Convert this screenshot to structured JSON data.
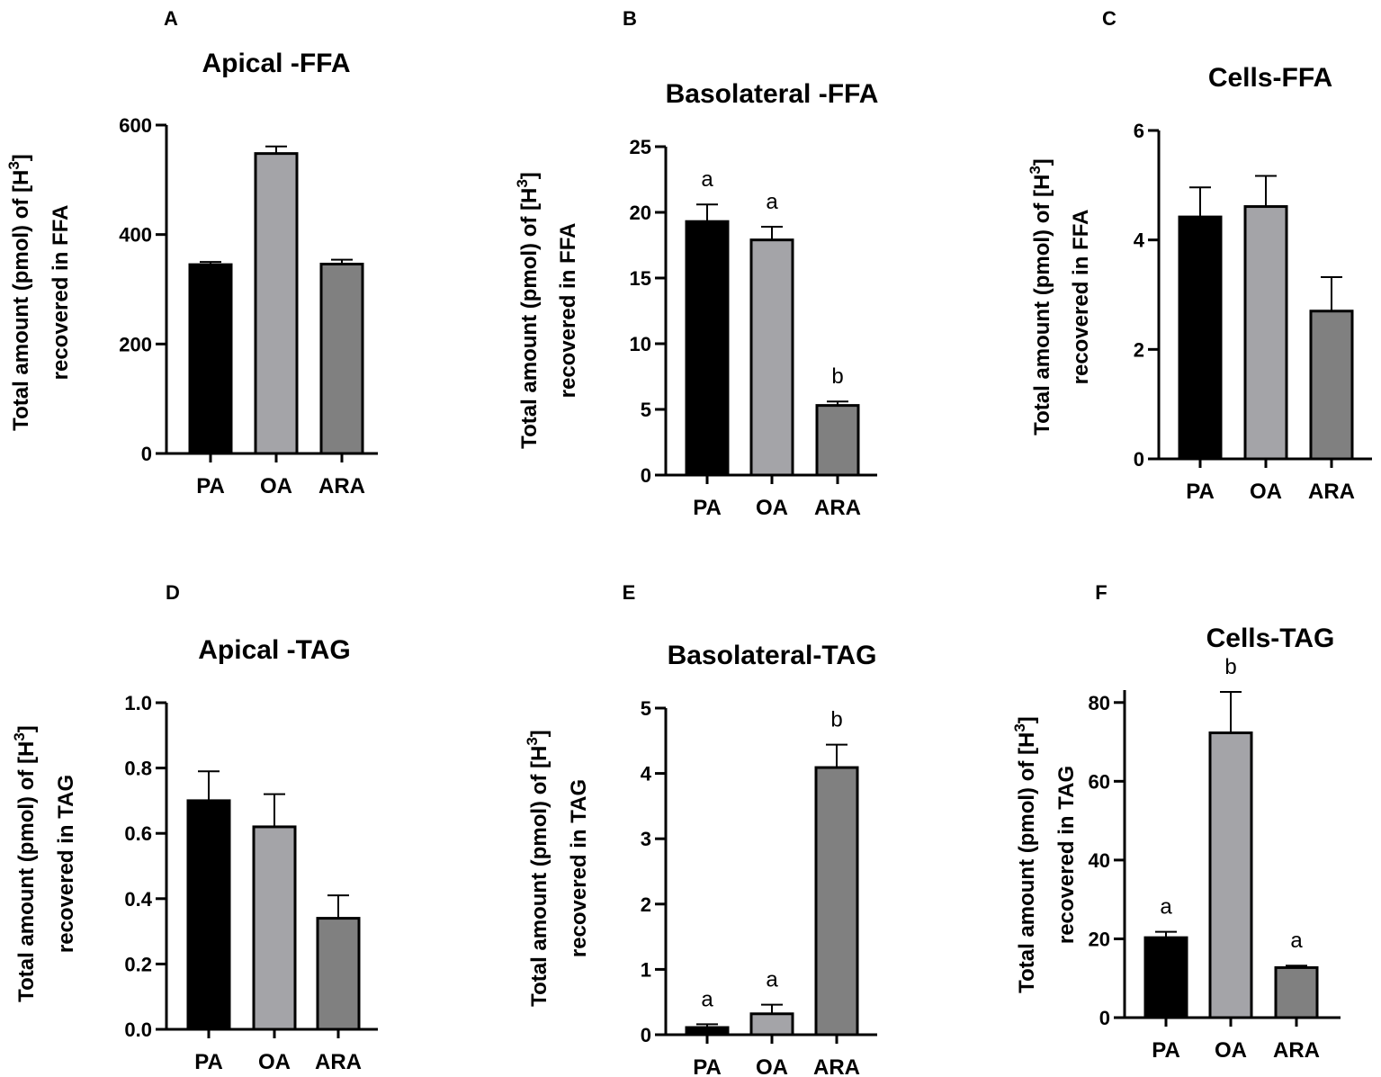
{
  "colors": {
    "PA": "#000000",
    "OA": "#a4a4a8",
    "ARA": "#808080",
    "edge": "#000000"
  },
  "chart_data": [
    {
      "panel": "A",
      "type": "bar",
      "title": "Apical -FFA",
      "ylabel_prefix": "Total amount (pmol) of [H",
      "ylabel_sup": "3",
      "ylabel_suffix": "]",
      "ylabel_line2": "recovered in FFA",
      "categories": [
        "PA",
        "OA",
        "ARA"
      ],
      "values": [
        345,
        548,
        346
      ],
      "errors": [
        5,
        13,
        8
      ],
      "significance": [
        "",
        "",
        ""
      ],
      "ylim": [
        0,
        600
      ],
      "yticks": [
        0,
        200,
        400,
        600
      ],
      "ytick_labels": [
        "0",
        "200",
        "400",
        "600"
      ]
    },
    {
      "panel": "B",
      "type": "bar",
      "title": "Basolateral -FFA",
      "ylabel_prefix": "Total amount (pmol) of [H",
      "ylabel_sup": "3",
      "ylabel_suffix": "]",
      "ylabel_line2": "recovered in FFA",
      "categories": [
        "PA",
        "OA",
        "ARA"
      ],
      "values": [
        19.3,
        17.9,
        5.3
      ],
      "errors": [
        1.3,
        1.0,
        0.3
      ],
      "significance": [
        "a",
        "a",
        "b"
      ],
      "ylim": [
        0,
        25
      ],
      "yticks": [
        0,
        5,
        10,
        15,
        20,
        25
      ],
      "ytick_labels": [
        "0",
        "5",
        "10",
        "15",
        "20",
        "25"
      ]
    },
    {
      "panel": "C",
      "type": "bar",
      "title": "Cells-FFA",
      "ylabel_prefix": "Total amount (pmol) of [H",
      "ylabel_sup": "3",
      "ylabel_suffix": "]",
      "ylabel_line2": "recovered in FFA",
      "categories": [
        "PA",
        "OA",
        "ARA"
      ],
      "values": [
        4.42,
        4.61,
        2.7
      ],
      "errors": [
        0.54,
        0.56,
        0.62
      ],
      "significance": [
        "",
        "",
        ""
      ],
      "ylim": [
        0,
        6
      ],
      "yticks": [
        0,
        2,
        4,
        6
      ],
      "ytick_labels": [
        "0",
        "2",
        "4",
        "6"
      ]
    },
    {
      "panel": "D",
      "type": "bar",
      "title": "Apical -TAG",
      "ylabel_prefix": "Total amount (pmol) of [H",
      "ylabel_sup": "3",
      "ylabel_suffix": "]",
      "ylabel_line2": "recovered in TAG",
      "categories": [
        "PA",
        "OA",
        "ARA"
      ],
      "values": [
        0.7,
        0.62,
        0.34
      ],
      "errors": [
        0.09,
        0.1,
        0.07
      ],
      "significance": [
        "",
        "",
        ""
      ],
      "ylim": [
        0,
        1.0
      ],
      "yticks": [
        0,
        0.2,
        0.4,
        0.6,
        0.8,
        1.0
      ],
      "ytick_labels": [
        "0.0",
        "0.2",
        "0.4",
        "0.6",
        "0.8",
        "1.0"
      ]
    },
    {
      "panel": "E",
      "type": "bar",
      "title": "Basolateral-TAG",
      "ylabel_prefix": "Total amount (pmol) of [H",
      "ylabel_sup": "3",
      "ylabel_suffix": "]",
      "ylabel_line2": "recovered in TAG",
      "categories": [
        "PA",
        "OA",
        "ARA"
      ],
      "values": [
        0.11,
        0.32,
        4.09
      ],
      "errors": [
        0.05,
        0.14,
        0.35
      ],
      "significance": [
        "a",
        "a",
        "b"
      ],
      "ylim": [
        0,
        5
      ],
      "yticks": [
        0,
        1,
        2,
        3,
        4,
        5
      ],
      "ytick_labels": [
        "0",
        "1",
        "2",
        "3",
        "4",
        "5"
      ]
    },
    {
      "panel": "F",
      "type": "bar",
      "title": "Cells-TAG",
      "ylabel_prefix": "Total amount (pmol) of [H",
      "ylabel_sup": "3",
      "ylabel_suffix": "]",
      "ylabel_line2": "recovered in TAG",
      "categories": [
        "PA",
        "OA",
        "ARA"
      ],
      "values": [
        20.3,
        72.3,
        12.7
      ],
      "errors": [
        1.5,
        10.4,
        0.5
      ],
      "significance": [
        "a",
        "b",
        "a"
      ],
      "ylim": [
        0,
        90
      ],
      "yticks": [
        0,
        20,
        40,
        60,
        80
      ],
      "ytick_labels": [
        "0",
        "20",
        "40",
        "60",
        "80"
      ]
    }
  ]
}
